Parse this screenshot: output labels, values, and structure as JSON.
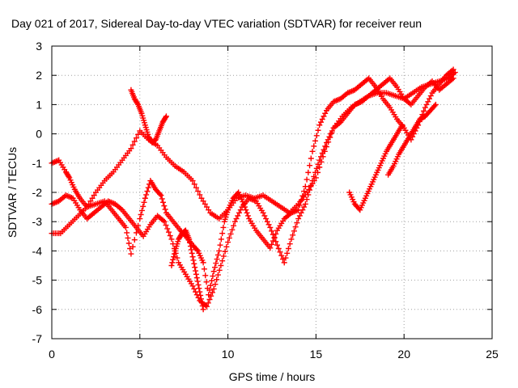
{
  "chart_data": {
    "type": "scatter",
    "title": "Day 021 of 2017, Sidereal Day-to-day VTEC variation (SDTVAR) for receiver reun",
    "xlabel": "GPS time / hours",
    "ylabel": "SDTVAR / TECUs",
    "xlim": [
      0,
      25
    ],
    "ylim": [
      -7,
      3
    ],
    "xticks": [
      "0",
      "5",
      "10",
      "15",
      "20",
      "25"
    ],
    "yticks": [
      "3",
      "2",
      "1",
      "0",
      "-1",
      "-2",
      "-3",
      "-4",
      "-5",
      "-6",
      "-7"
    ],
    "grid": true,
    "marker": "+",
    "marker_color": "#ff0000",
    "series": [
      {
        "x": [
          0,
          0.4,
          0.8,
          1.0,
          1.3,
          1.6,
          2.0,
          2.5,
          3.0,
          3.4,
          3.8,
          4.2,
          4.5,
          5.0,
          5.3,
          5.6,
          5.9,
          6.2,
          6.5,
          6.9,
          7.3,
          7.6,
          8.0,
          8.3,
          8.6,
          8.9,
          9.2,
          9.5,
          9.8,
          10.0,
          10.3,
          10.6,
          10.9,
          11.2,
          11.6,
          12.0,
          12.4,
          12.8,
          13.2,
          13.6,
          14.0,
          14.4,
          14.8,
          15.2,
          15.6,
          16.0,
          16.4,
          16.8,
          17.2,
          17.6,
          18.0,
          18.4,
          18.8,
          19.2,
          19.6,
          20.0,
          20.4,
          20.8,
          21.2,
          21.6,
          22.0,
          22.4,
          22.8
        ],
        "y": [
          -1.0,
          -0.9,
          -1.3,
          -1.5,
          -1.9,
          -2.2,
          -2.5,
          -2.4,
          -2.3,
          -2.6,
          -2.9,
          -3.2,
          -4.1,
          -2.9,
          -2.2,
          -1.6,
          -1.9,
          -2.1,
          -2.7,
          -3.0,
          -3.3,
          -3.5,
          -3.8,
          -4.0,
          -4.4,
          -5.5,
          -4.7,
          -4.0,
          -3.0,
          -2.6,
          -2.2,
          -2.0,
          -2.4,
          -2.9,
          -3.3,
          -3.6,
          -3.9,
          -3.3,
          -2.9,
          -2.7,
          -2.6,
          -1.8,
          -0.6,
          0.3,
          0.8,
          1.1,
          1.2,
          1.4,
          1.5,
          1.7,
          1.9,
          1.6,
          1.2,
          0.9,
          0.5,
          0.2,
          -0.2,
          0.3,
          0.9,
          1.4,
          1.7,
          2.0,
          2.2
        ]
      },
      {
        "x": [
          0,
          0.4,
          0.8,
          1.2,
          1.6,
          2.0,
          2.4,
          2.8,
          3.2,
          3.6,
          4.0,
          4.4,
          4.8,
          5.2,
          5.6,
          6.0,
          6.4,
          6.8,
          7.2,
          7.6,
          8.0,
          8.4,
          8.8,
          9.2,
          9.6,
          10.0,
          10.4,
          10.8,
          11.2,
          11.6,
          12.0,
          12.4,
          12.8,
          13.2,
          13.6,
          14.0,
          14.4,
          14.8,
          15.2,
          15.6,
          16.0,
          16.4,
          16.8,
          17.2,
          17.6,
          18.0,
          18.4,
          18.8,
          19.2,
          19.6,
          20.0,
          20.4,
          20.8,
          21.2,
          21.6,
          22.0,
          22.4,
          22.8
        ],
        "y": [
          -2.4,
          -2.3,
          -2.1,
          -2.2,
          -2.6,
          -2.9,
          -2.7,
          -2.5,
          -2.3,
          -2.4,
          -2.6,
          -2.9,
          -3.2,
          -3.5,
          -3.1,
          -2.8,
          -3.0,
          -3.6,
          -4.4,
          -4.8,
          -5.2,
          -5.7,
          -5.9,
          -5.3,
          -4.5,
          -3.7,
          -3.0,
          -2.5,
          -2.2,
          -2.3,
          -2.7,
          -3.2,
          -3.8,
          -4.4,
          -3.6,
          -2.9,
          -2.4,
          -1.6,
          -0.9,
          -0.3,
          0.2,
          0.4,
          0.7,
          1.0,
          1.1,
          1.3,
          1.5,
          1.7,
          1.9,
          1.6,
          1.2,
          1.0,
          1.3,
          1.6,
          1.8,
          1.5,
          1.7,
          1.9
        ]
      },
      {
        "x": [
          0,
          0.5,
          1.0,
          1.5,
          2.0,
          2.5,
          3.0,
          3.5,
          4.0,
          4.5,
          5.0,
          5.5,
          6.0,
          6.5,
          7.0,
          7.5,
          8.0,
          8.5,
          9.0,
          9.5,
          10.0,
          10.5,
          11.0,
          11.5,
          12.0,
          12.5,
          13.0,
          13.5,
          14.0,
          14.5,
          15.0,
          15.5,
          16.0,
          16.5,
          17.0,
          17.5,
          18.0,
          18.5,
          19.0,
          19.5,
          20.0,
          20.5,
          21.0,
          21.5,
          22.0,
          22.5,
          22.9
        ],
        "y": [
          -3.4,
          -3.4,
          -3.1,
          -2.8,
          -2.5,
          -2.0,
          -1.6,
          -1.3,
          -0.9,
          -0.5,
          0.1,
          -0.2,
          -0.4,
          -0.8,
          -1.1,
          -1.3,
          -1.6,
          -2.2,
          -2.7,
          -2.9,
          -2.6,
          -2.2,
          -2.1,
          -2.2,
          -2.1,
          -2.3,
          -2.5,
          -2.7,
          -2.4,
          -2.0,
          -1.5,
          -0.6,
          0.2,
          0.6,
          0.9,
          1.1,
          1.3,
          1.4,
          1.4,
          1.3,
          1.2,
          1.4,
          1.6,
          1.7,
          1.8,
          1.9,
          2.1
        ]
      },
      {
        "x": [
          4.5,
          4.7,
          4.9,
          5.1,
          5.3,
          5.5,
          5.7,
          5.9,
          6.1,
          6.3,
          6.5
        ],
        "y": [
          1.5,
          1.2,
          1.0,
          0.7,
          0.3,
          -0.1,
          -0.3,
          -0.2,
          0.1,
          0.4,
          0.6
        ]
      },
      {
        "x": [
          6.8,
          7.0,
          7.2,
          7.4,
          7.6,
          7.8,
          8.0,
          8.2,
          8.4,
          8.6
        ],
        "y": [
          -4.5,
          -4.0,
          -3.6,
          -3.4,
          -3.3,
          -3.6,
          -4.2,
          -4.8,
          -5.4,
          -6.0
        ]
      },
      {
        "x": [
          16.9,
          17.2,
          17.5,
          17.8,
          18.1,
          18.4,
          18.7,
          19.0,
          19.3,
          19.6,
          19.9
        ],
        "y": [
          -2.0,
          -2.4,
          -2.6,
          -2.2,
          -1.8,
          -1.4,
          -1.0,
          -0.6,
          -0.3,
          0.0,
          0.3
        ]
      },
      {
        "x": [
          19.1,
          19.4,
          19.7,
          20.0,
          20.3,
          20.6,
          20.9,
          21.2,
          21.5,
          21.8
        ],
        "y": [
          -1.4,
          -1.1,
          -0.7,
          -0.4,
          -0.1,
          0.2,
          0.5,
          0.6,
          0.8,
          1.0
        ]
      }
    ]
  }
}
